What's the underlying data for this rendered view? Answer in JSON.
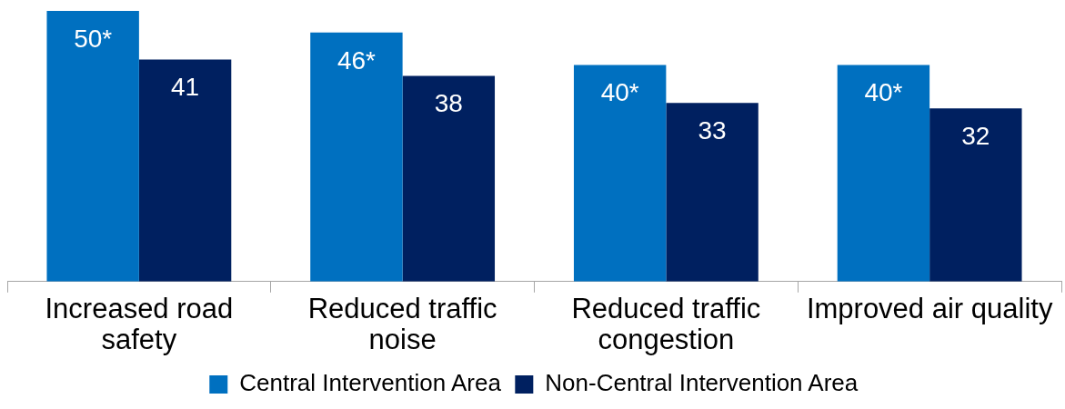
{
  "chart_data": {
    "type": "bar",
    "categories": [
      "Increased road safety",
      "Reduced traffic noise",
      "Reduced traffic congestion",
      "Improved air quality"
    ],
    "series": [
      {
        "name": "Central Intervention Area",
        "color": "#0070c0",
        "values": [
          50,
          46,
          40,
          40
        ],
        "value_labels": [
          "50*",
          "46*",
          "40*",
          "40*"
        ]
      },
      {
        "name": "Non-Central Intervention Area",
        "color": "#002060",
        "values": [
          41,
          38,
          33,
          32
        ],
        "value_labels": [
          "41",
          "38",
          "33",
          "32"
        ]
      }
    ],
    "legend": "bottom",
    "grid": false,
    "tick_labels": "x"
  }
}
